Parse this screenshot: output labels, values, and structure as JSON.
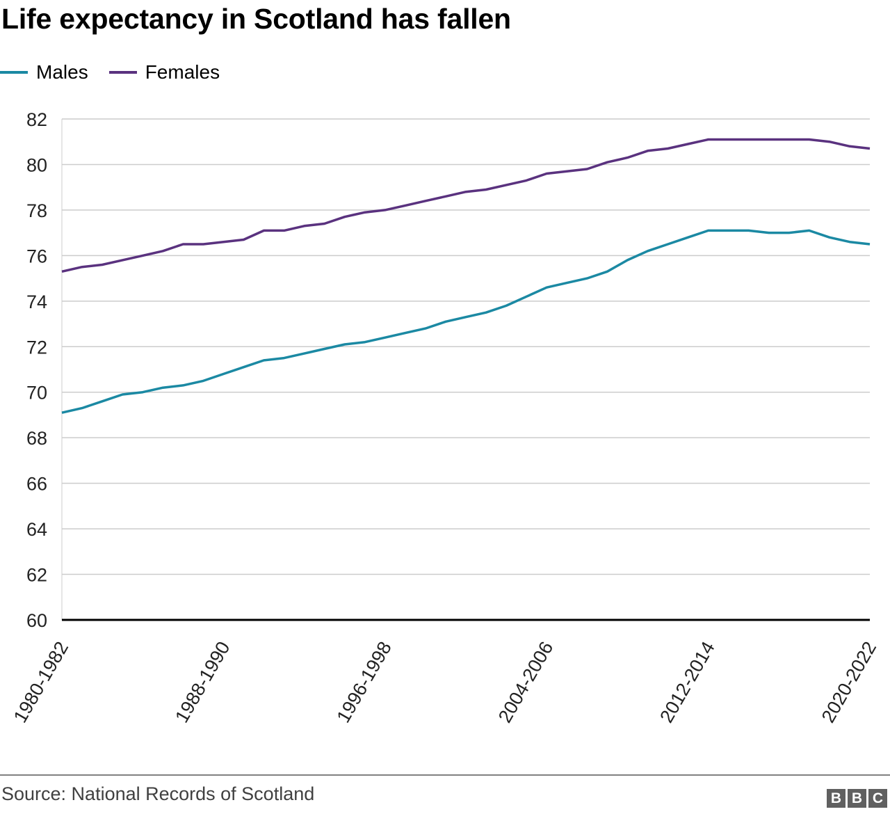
{
  "header": {
    "title": "Life expectancy in Scotland has fallen"
  },
  "legend": [
    {
      "label": "Males",
      "color": "#1b89a3"
    },
    {
      "label": "Females",
      "color": "#5a327f"
    }
  ],
  "footer": {
    "source": "Source: National Records of Scotland",
    "logo_letters": [
      "B",
      "B",
      "C"
    ]
  },
  "chart_data": {
    "type": "line",
    "title": "Life expectancy in Scotland has fallen",
    "xlabel": "",
    "ylabel": "",
    "ylim": [
      60,
      82
    ],
    "yticks": [
      60,
      62,
      64,
      66,
      68,
      70,
      72,
      74,
      76,
      78,
      80,
      82
    ],
    "grid": true,
    "legend_position": "top-left",
    "x": [
      "1980-1982",
      "1981-1983",
      "1982-1984",
      "1983-1985",
      "1984-1986",
      "1985-1987",
      "1986-1988",
      "1987-1989",
      "1988-1990",
      "1989-1991",
      "1990-1992",
      "1991-1993",
      "1992-1994",
      "1993-1995",
      "1994-1996",
      "1995-1997",
      "1996-1998",
      "1997-1999",
      "1998-2000",
      "1999-2001",
      "2000-2002",
      "2001-2003",
      "2002-2004",
      "2003-2005",
      "2004-2006",
      "2005-2007",
      "2006-2008",
      "2007-2009",
      "2008-2010",
      "2009-2011",
      "2010-2012",
      "2011-2013",
      "2012-2014",
      "2013-2015",
      "2014-2016",
      "2015-2017",
      "2016-2018",
      "2017-2019",
      "2018-2020",
      "2019-2021",
      "2020-2022"
    ],
    "xtick_labels": [
      "1980-1982",
      "1988-1990",
      "1996-1998",
      "2004-2006",
      "2012-2014",
      "2020-2022"
    ],
    "series": [
      {
        "name": "Males",
        "color": "#1b89a3",
        "values": [
          69.1,
          69.3,
          69.6,
          69.9,
          70.0,
          70.2,
          70.3,
          70.5,
          70.8,
          71.1,
          71.4,
          71.5,
          71.7,
          71.9,
          72.1,
          72.2,
          72.4,
          72.6,
          72.8,
          73.1,
          73.3,
          73.5,
          73.8,
          74.2,
          74.6,
          74.8,
          75.0,
          75.3,
          75.8,
          76.2,
          76.5,
          76.8,
          77.1,
          77.1,
          77.1,
          77.0,
          77.0,
          77.1,
          76.8,
          76.6,
          76.5
        ]
      },
      {
        "name": "Females",
        "color": "#5a327f",
        "values": [
          75.3,
          75.5,
          75.6,
          75.8,
          76.0,
          76.2,
          76.5,
          76.5,
          76.6,
          76.7,
          77.1,
          77.1,
          77.3,
          77.4,
          77.7,
          77.9,
          78.0,
          78.2,
          78.4,
          78.6,
          78.8,
          78.9,
          79.1,
          79.3,
          79.6,
          79.7,
          79.8,
          80.1,
          80.3,
          80.6,
          80.7,
          80.9,
          81.1,
          81.1,
          81.1,
          81.1,
          81.1,
          81.1,
          81.0,
          80.8,
          80.7
        ]
      }
    ]
  }
}
